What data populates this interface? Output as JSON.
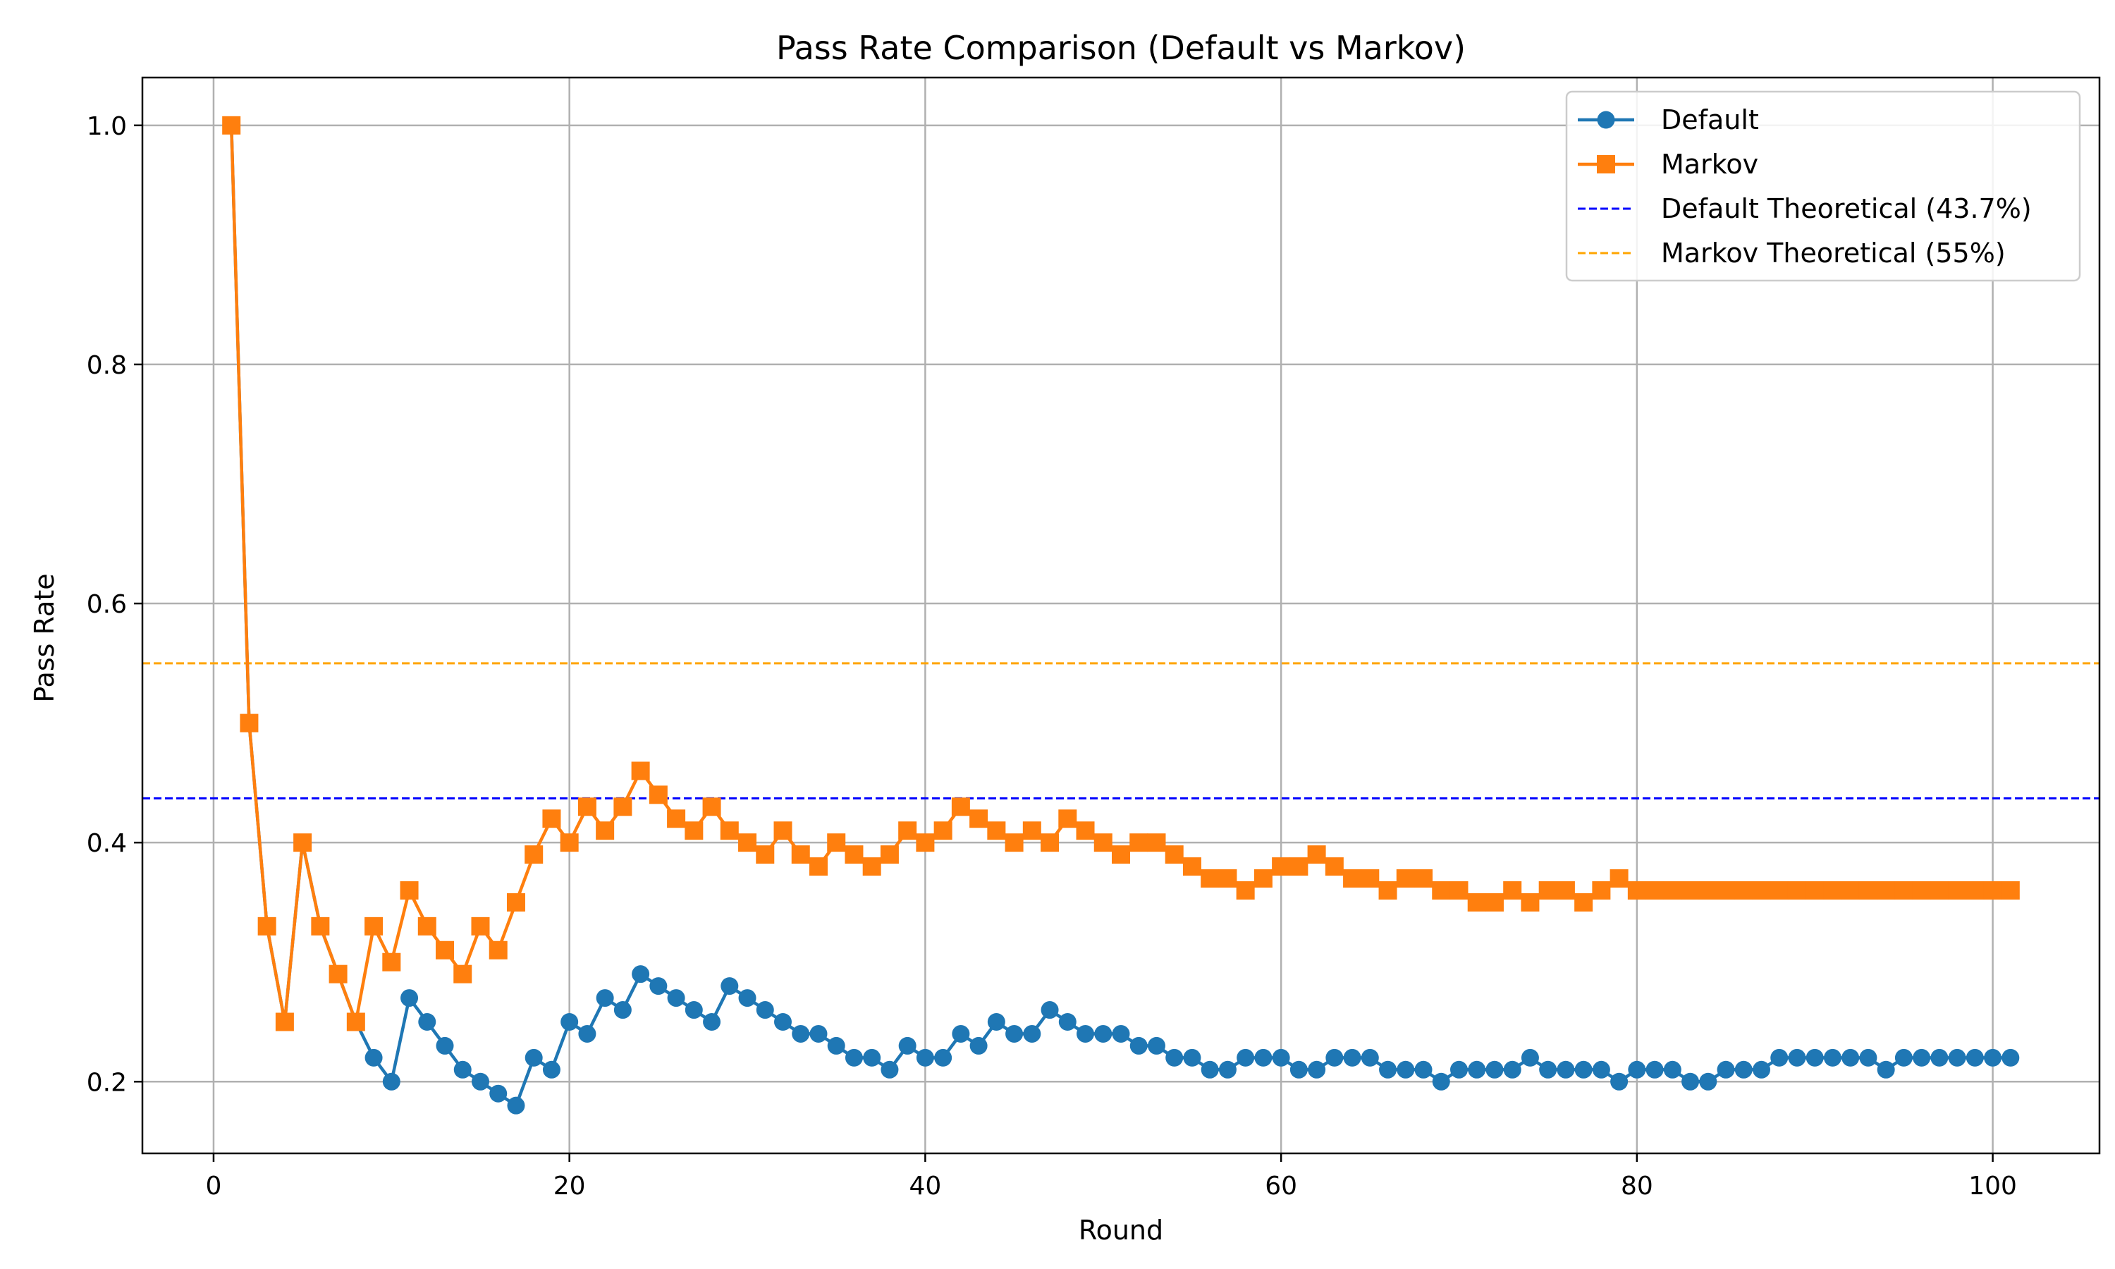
{
  "chart_data": {
    "type": "line",
    "title": "Pass Rate Comparison (Default vs Markov)",
    "xlabel": "Round",
    "ylabel": "Pass Rate",
    "xlim": [
      -4,
      106
    ],
    "ylim": [
      0.14,
      1.04
    ],
    "xticks": [
      0,
      20,
      40,
      60,
      80,
      100
    ],
    "yticks": [
      0.2,
      0.4,
      0.6,
      0.8,
      1.0
    ],
    "xtick_labels": [
      "0",
      "20",
      "40",
      "60",
      "80",
      "100"
    ],
    "ytick_labels": [
      "0.2",
      "0.4",
      "0.6",
      "0.8",
      "1.0"
    ],
    "grid": true,
    "legend_position": "top-right",
    "series": [
      {
        "name": "Default",
        "color": "#1f77b4",
        "marker": "circle",
        "x_start": 1,
        "values": [
          1.0,
          0.5,
          0.33,
          0.25,
          0.4,
          0.33,
          0.29,
          0.25,
          0.22,
          0.2,
          0.27,
          0.25,
          0.23,
          0.21,
          0.2,
          0.19,
          0.18,
          0.22,
          0.21,
          0.25,
          0.24,
          0.27,
          0.26,
          0.29,
          0.28,
          0.27,
          0.26,
          0.25,
          0.28,
          0.27,
          0.26,
          0.25,
          0.24,
          0.24,
          0.23,
          0.22,
          0.22,
          0.21,
          0.23,
          0.22,
          0.22,
          0.24,
          0.23,
          0.25,
          0.24,
          0.24,
          0.26,
          0.25,
          0.24,
          0.24,
          0.24,
          0.23,
          0.23,
          0.22,
          0.22,
          0.21,
          0.21,
          0.22,
          0.22,
          0.22,
          0.21,
          0.21,
          0.22,
          0.22,
          0.22,
          0.21,
          0.21,
          0.21,
          0.2,
          0.21,
          0.21,
          0.21,
          0.21,
          0.22,
          0.21,
          0.21,
          0.21,
          0.21,
          0.2,
          0.21,
          0.21,
          0.21,
          0.2,
          0.2,
          0.21,
          0.21,
          0.21,
          0.22,
          0.22,
          0.22,
          0.22,
          0.22,
          0.22,
          0.21,
          0.22,
          0.22,
          0.22,
          0.22,
          0.22,
          0.22,
          0.22
        ]
      },
      {
        "name": "Markov",
        "color": "#ff7f0e",
        "marker": "square",
        "x_start": 1,
        "values": [
          1.0,
          0.5,
          0.33,
          0.25,
          0.4,
          0.33,
          0.29,
          0.25,
          0.33,
          0.3,
          0.36,
          0.33,
          0.31,
          0.29,
          0.33,
          0.31,
          0.35,
          0.39,
          0.42,
          0.4,
          0.43,
          0.41,
          0.43,
          0.46,
          0.44,
          0.42,
          0.41,
          0.43,
          0.41,
          0.4,
          0.39,
          0.41,
          0.39,
          0.38,
          0.4,
          0.39,
          0.38,
          0.39,
          0.41,
          0.4,
          0.41,
          0.43,
          0.42,
          0.41,
          0.4,
          0.41,
          0.4,
          0.42,
          0.41,
          0.4,
          0.39,
          0.4,
          0.4,
          0.39,
          0.38,
          0.37,
          0.37,
          0.36,
          0.37,
          0.38,
          0.38,
          0.39,
          0.38,
          0.37,
          0.37,
          0.36,
          0.37,
          0.37,
          0.36,
          0.36,
          0.35,
          0.35,
          0.36,
          0.35,
          0.36,
          0.36,
          0.35,
          0.36,
          0.37,
          0.36,
          0.36,
          0.36,
          0.36,
          0.36,
          0.36,
          0.36,
          0.36,
          0.36,
          0.36,
          0.36,
          0.36,
          0.36,
          0.36,
          0.36,
          0.36,
          0.36,
          0.36,
          0.36,
          0.36,
          0.36,
          0.36
        ]
      }
    ],
    "reference_lines": [
      {
        "name": "Default Theoretical (43.7%)",
        "y": 0.437,
        "color": "#0000ff",
        "style": "dashed"
      },
      {
        "name": "Markov Theoretical (55%)",
        "y": 0.55,
        "color": "#ffa500",
        "style": "dashed"
      }
    ]
  }
}
